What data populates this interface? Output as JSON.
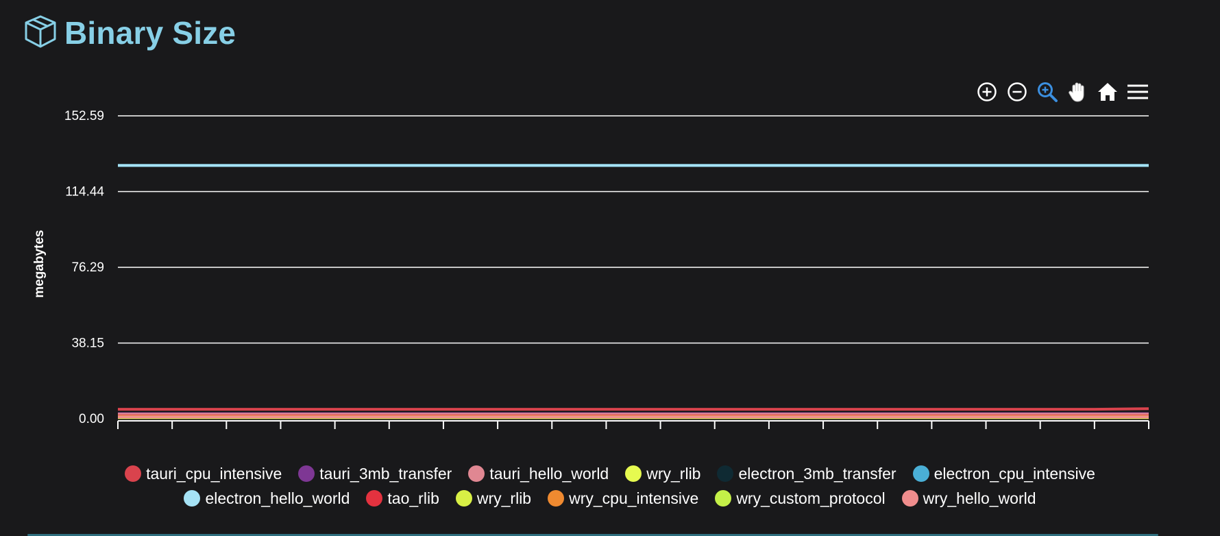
{
  "header": {
    "title": "Binary Size",
    "icon": "cube-icon",
    "title_color": "#87cfe6"
  },
  "toolbar": {
    "tools": [
      {
        "name": "zoom-in-icon"
      },
      {
        "name": "zoom-out-icon"
      },
      {
        "name": "zoom-selection-icon"
      },
      {
        "name": "pan-icon"
      },
      {
        "name": "reset-zoom-home-icon"
      },
      {
        "name": "menu-icon"
      }
    ],
    "active_tool": "zoom-selection-icon",
    "active_color": "#3b8fe0"
  },
  "chart_data": {
    "type": "line",
    "title": "",
    "xlabel": "",
    "ylabel": "megabytes",
    "ylim": [
      0,
      152.59
    ],
    "yticks": [
      "0.00",
      "38.15",
      "76.29",
      "114.44",
      "152.59"
    ],
    "x_points": 20,
    "grid": true,
    "legend_position": "bottom",
    "series": [
      {
        "name": "tauri_cpu_intensive",
        "color": "#d9434d",
        "values": [
          4.8,
          4.8,
          4.8,
          4.8,
          4.8,
          4.8,
          4.8,
          4.8,
          4.8,
          4.8,
          4.8,
          4.8,
          4.8,
          4.8,
          4.8,
          4.8,
          4.8,
          4.8,
          4.8,
          5.1
        ]
      },
      {
        "name": "tauri_3mb_transfer",
        "color": "#7e3794",
        "values": [
          2.6,
          2.6,
          2.6,
          2.6,
          2.6,
          2.6,
          2.6,
          2.6,
          2.6,
          2.6,
          2.6,
          2.6,
          2.6,
          2.6,
          2.6,
          2.6,
          2.6,
          2.6,
          2.6,
          2.6
        ]
      },
      {
        "name": "tauri_hello_world",
        "color": "#e08792",
        "values": [
          2.3,
          2.3,
          2.3,
          2.3,
          2.3,
          2.3,
          2.3,
          2.3,
          2.3,
          2.3,
          2.3,
          2.3,
          2.3,
          2.3,
          2.3,
          2.3,
          2.3,
          2.3,
          2.3,
          2.3
        ]
      },
      {
        "name": "wry_rlib",
        "color": "#e6fa50",
        "values": [
          0.6,
          0.6,
          0.6,
          0.6,
          0.6,
          0.6,
          0.6,
          0.6,
          0.6,
          0.6,
          0.6,
          0.6,
          0.6,
          0.6,
          0.6,
          0.6,
          0.6,
          0.6,
          0.6,
          0.6
        ]
      },
      {
        "name": "electron_3mb_transfer",
        "color": "#0f2a33",
        "values": [
          127.6,
          127.6,
          127.6,
          127.6,
          127.6,
          127.6,
          127.6,
          127.6,
          127.6,
          127.6,
          127.6,
          127.6,
          127.6,
          127.6,
          127.6,
          127.6,
          127.6,
          127.6,
          127.6,
          127.6
        ]
      },
      {
        "name": "electron_cpu_intensive",
        "color": "#4aafd6",
        "values": [
          127.6,
          127.6,
          127.6,
          127.6,
          127.6,
          127.6,
          127.6,
          127.6,
          127.6,
          127.6,
          127.6,
          127.6,
          127.6,
          127.6,
          127.6,
          127.6,
          127.6,
          127.6,
          127.6,
          127.6
        ]
      },
      {
        "name": "electron_hello_world",
        "color": "#a5e2f5",
        "values": [
          127.6,
          127.6,
          127.6,
          127.6,
          127.6,
          127.6,
          127.6,
          127.6,
          127.6,
          127.6,
          127.6,
          127.6,
          127.6,
          127.6,
          127.6,
          127.6,
          127.6,
          127.6,
          127.6,
          127.6
        ]
      },
      {
        "name": "tao_rlib",
        "color": "#e3323f",
        "values": [
          1.4,
          1.4,
          1.4,
          1.4,
          1.4,
          1.4,
          1.4,
          1.4,
          1.4,
          1.4,
          1.4,
          1.4,
          1.4,
          1.4,
          1.4,
          1.4,
          1.4,
          1.4,
          1.4,
          1.4
        ]
      },
      {
        "name": "wry_rlib",
        "color": "#d8ef45",
        "values": [
          0.6,
          0.6,
          0.6,
          0.6,
          0.6,
          0.6,
          0.6,
          0.6,
          0.6,
          0.6,
          0.6,
          0.6,
          0.6,
          0.6,
          0.6,
          0.6,
          0.6,
          0.6,
          0.6,
          0.6
        ]
      },
      {
        "name": "wry_cpu_intensive",
        "color": "#ef8a30",
        "values": [
          1.1,
          1.1,
          1.1,
          1.1,
          1.1,
          1.1,
          1.1,
          1.1,
          1.1,
          1.1,
          1.1,
          1.1,
          1.1,
          1.1,
          1.1,
          1.1,
          1.1,
          1.1,
          1.1,
          1.1
        ]
      },
      {
        "name": "wry_custom_protocol",
        "color": "#c4f048",
        "values": [
          1.0,
          1.0,
          1.0,
          1.0,
          1.0,
          1.0,
          1.0,
          1.0,
          1.0,
          1.0,
          1.0,
          1.0,
          1.0,
          1.0,
          1.0,
          1.0,
          1.0,
          1.0,
          1.0,
          1.0
        ]
      },
      {
        "name": "wry_hello_world",
        "color": "#f08d8d",
        "values": [
          0.9,
          0.9,
          0.9,
          0.9,
          0.9,
          0.9,
          0.9,
          0.9,
          0.9,
          0.9,
          0.9,
          0.9,
          0.9,
          0.9,
          0.9,
          0.9,
          0.9,
          0.9,
          0.9,
          0.9
        ]
      }
    ]
  }
}
